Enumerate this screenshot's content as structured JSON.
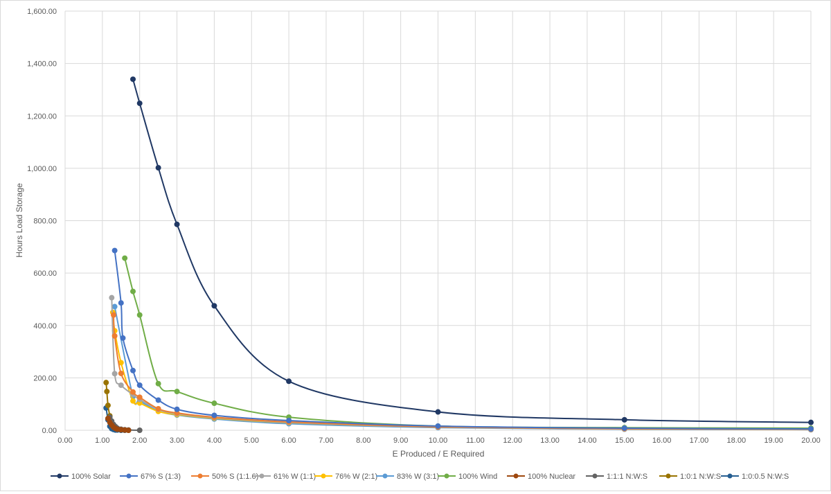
{
  "chart_data": {
    "type": "line",
    "title": "",
    "xlabel": "E Produced / E Required",
    "ylabel": "Hours Load Storage",
    "xlim": [
      0,
      20
    ],
    "ylim": [
      0,
      1600
    ],
    "x_ticks": [
      "0.00",
      "1.00",
      "2.00",
      "3.00",
      "4.00",
      "5.00",
      "6.00",
      "7.00",
      "8.00",
      "9.00",
      "10.00",
      "11.00",
      "12.00",
      "13.00",
      "14.00",
      "15.00",
      "16.00",
      "17.00",
      "18.00",
      "19.00",
      "20.00"
    ],
    "y_ticks": [
      "0.00",
      "200.00",
      "400.00",
      "600.00",
      "800.00",
      "1,000.00",
      "1,200.00",
      "1,400.00",
      "1,600.00"
    ],
    "grid": true,
    "legend_position": "bottom",
    "series": [
      {
        "name": "100% Solar",
        "color": "#203864",
        "x": [
          1.82,
          2.0,
          2.5,
          3.0,
          4.0,
          6.0,
          10.0,
          15.0,
          20.0
        ],
        "y": [
          1340,
          1248,
          1002,
          786,
          475,
          187,
          70,
          40,
          30
        ]
      },
      {
        "name": "67% S (1:3)",
        "color": "#4472c4",
        "x": [
          1.33,
          1.5,
          1.55,
          1.82,
          2.0,
          2.5,
          3.0,
          4.0,
          6.0,
          10.0,
          15.0,
          20.0
        ],
        "y": [
          686,
          486,
          352,
          228,
          172,
          115,
          80,
          57,
          37,
          16,
          8,
          5
        ]
      },
      {
        "name": "50% S (1:1.6)",
        "color": "#ed7d31",
        "x": [
          1.3,
          1.33,
          1.5,
          1.82,
          2.0,
          2.5,
          3.0,
          4.0,
          6.0,
          10.0,
          15.0,
          20.0
        ],
        "y": [
          440,
          360,
          217,
          146,
          126,
          82,
          66,
          50,
          32,
          13,
          6,
          4
        ]
      },
      {
        "name": "61% W (1:1)",
        "color": "#a5a5a5",
        "x": [
          1.25,
          1.33,
          1.5,
          1.82,
          2.0,
          2.5,
          3.0,
          4.0,
          6.0,
          10.0,
          15.0,
          20.0
        ],
        "y": [
          506,
          216,
          172,
          136,
          118,
          80,
          63,
          48,
          30,
          12,
          5,
          3
        ]
      },
      {
        "name": "76% W (2:1)",
        "color": "#ffc000",
        "x": [
          1.28,
          1.33,
          1.5,
          1.82,
          2.0,
          2.5,
          3.0,
          4.0,
          6.0,
          10.0,
          15.0,
          20.0
        ],
        "y": [
          450,
          380,
          258,
          112,
          104,
          72,
          60,
          46,
          29,
          12,
          5,
          3
        ]
      },
      {
        "name": "83% W (3:1)",
        "color": "#5b9bd5",
        "x": [
          1.33,
          1.82,
          2.0,
          2.5,
          3.0,
          4.0,
          6.0,
          10.0,
          15.0,
          20.0
        ],
        "y": [
          472,
          128,
          112,
          74,
          58,
          43,
          25,
          10,
          4,
          2
        ]
      },
      {
        "name": "100% Wind",
        "color": "#70ad47",
        "x": [
          1.6,
          1.82,
          2.0,
          2.5,
          3.0,
          4.0,
          6.0,
          10.0,
          15.0,
          20.0
        ],
        "y": [
          657,
          530,
          440,
          178,
          148,
          103,
          50,
          16,
          10,
          8
        ]
      },
      {
        "name": "100% Nuclear",
        "color": "#9e480e",
        "x": [
          1.15,
          1.2,
          1.25,
          1.3,
          1.35,
          1.4,
          1.5,
          1.6,
          1.7
        ],
        "y": [
          45,
          30,
          20,
          12,
          7,
          4,
          2,
          1,
          0
        ]
      },
      {
        "name": "1:1:1 N:W:S",
        "color": "#636363",
        "x": [
          1.2,
          1.25,
          1.3,
          1.35,
          1.4,
          1.5,
          1.6,
          1.7,
          2.0
        ],
        "y": [
          50,
          35,
          22,
          14,
          8,
          4,
          2,
          1,
          0
        ]
      },
      {
        "name": "1:0:1 N:W:S",
        "color": "#997300",
        "x": [
          1.1,
          1.12,
          1.15,
          1.2,
          1.25,
          1.3,
          1.4,
          1.5,
          1.6,
          1.7
        ],
        "y": [
          182,
          148,
          95,
          55,
          30,
          15,
          6,
          3,
          1,
          0
        ]
      },
      {
        "name": "1:0:0.5 N:W:S",
        "color": "#255e91",
        "x": [
          1.1,
          1.15,
          1.2,
          1.25,
          1.3,
          1.35,
          1.4,
          1.5,
          1.6
        ],
        "y": [
          85,
          40,
          15,
          6,
          3,
          1,
          1,
          0,
          0
        ]
      }
    ]
  }
}
